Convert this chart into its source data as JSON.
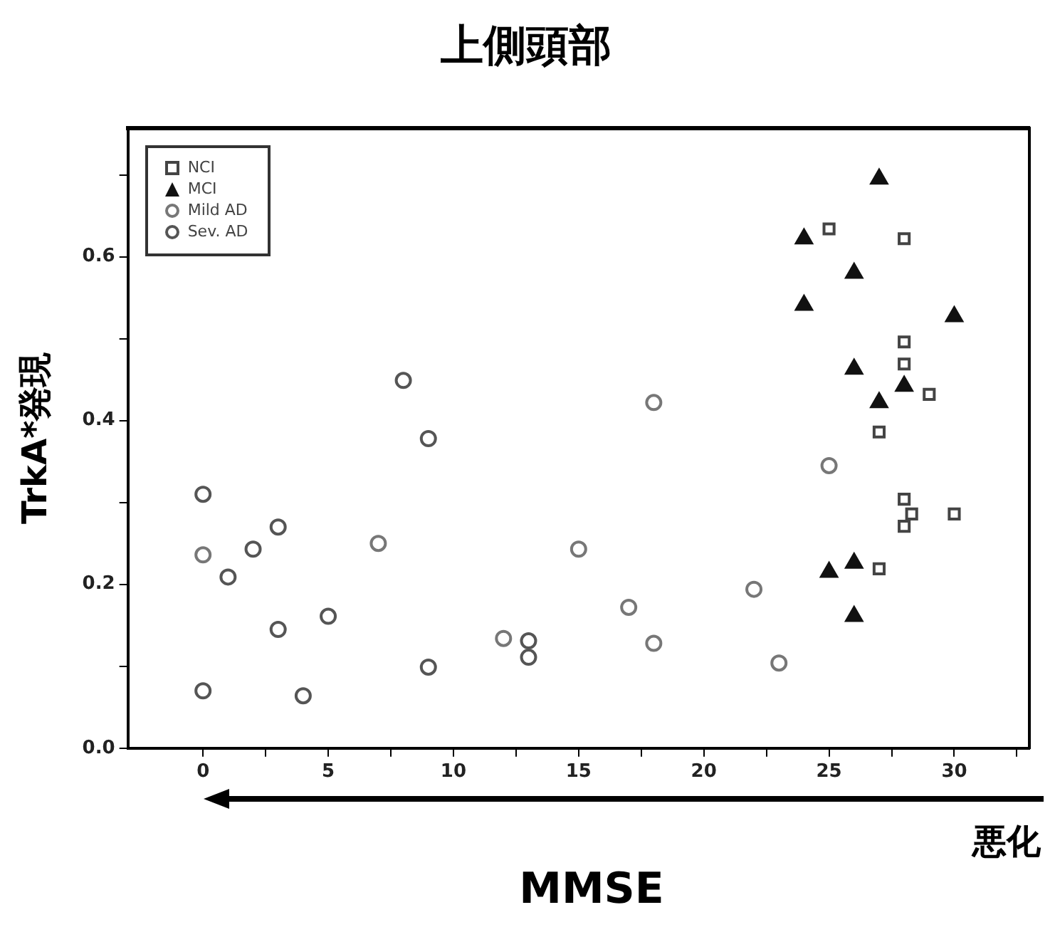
{
  "chart_data": {
    "type": "scatter",
    "title": "上側頭部",
    "xlabel": "MMSE",
    "ylabel": "TrkA*発現",
    "xlim": [
      -3,
      33
    ],
    "ylim": [
      0,
      0.757
    ],
    "xticks": [
      0,
      {
        "value": 2.5,
        "label": null
      },
      5,
      {
        "value": 7.5,
        "label": null
      },
      10,
      {
        "value": 12.5,
        "label": null
      },
      15,
      {
        "value": 17.5,
        "label": null
      },
      20,
      {
        "value": 22.5,
        "label": null
      },
      25,
      {
        "value": 27.5,
        "label": null
      },
      30,
      {
        "value": 32.5,
        "label": null
      }
    ],
    "yticks": [
      {
        "value": 0,
        "label": "0.0"
      },
      {
        "value": 0.1,
        "label": null
      },
      {
        "value": 0.2,
        "label": "0.2"
      },
      {
        "value": 0.3,
        "label": null
      },
      {
        "value": 0.4,
        "label": "0.4"
      },
      {
        "value": 0.5,
        "label": null
      },
      {
        "value": 0.6,
        "label": "0.6"
      },
      {
        "value": 0.7,
        "label": null
      }
    ],
    "grid": false,
    "legend": "top left",
    "annotations": [
      "悪化"
    ],
    "series": [
      {
        "name": "NCI",
        "color": "#444444",
        "marker": "square",
        "x": [
          25,
          28,
          28,
          28,
          29,
          27,
          28,
          28.3,
          28,
          30,
          27
        ],
        "values": [
          0.634,
          0.622,
          0.496,
          0.469,
          0.432,
          0.386,
          0.304,
          0.286,
          0.271,
          0.286,
          0.219
        ]
      },
      {
        "name": "MCI",
        "color": "#111111",
        "marker": "triangle",
        "x": [
          27,
          24,
          26,
          24,
          30,
          26,
          28,
          27,
          26,
          25,
          26
        ],
        "values": [
          0.695,
          0.622,
          0.58,
          0.541,
          0.527,
          0.463,
          0.442,
          0.422,
          0.226,
          0.215,
          0.161
        ]
      },
      {
        "name": "Mild AD",
        "color": "#777777",
        "marker": "circle",
        "x": [
          0,
          7,
          12,
          15,
          17,
          18,
          18,
          22,
          23,
          25
        ],
        "values": [
          0.236,
          0.25,
          0.134,
          0.243,
          0.172,
          0.422,
          0.128,
          0.194,
          0.104,
          0.345
        ]
      },
      {
        "name": "Sev. AD",
        "color": "#555555",
        "marker": "circle",
        "x": [
          0,
          0,
          1,
          2,
          3,
          3,
          4,
          5,
          8,
          9,
          9,
          13,
          13
        ],
        "values": [
          0.31,
          0.07,
          0.209,
          0.243,
          0.27,
          0.145,
          0.064,
          0.161,
          0.449,
          0.378,
          0.099,
          0.131,
          0.111
        ]
      }
    ]
  }
}
